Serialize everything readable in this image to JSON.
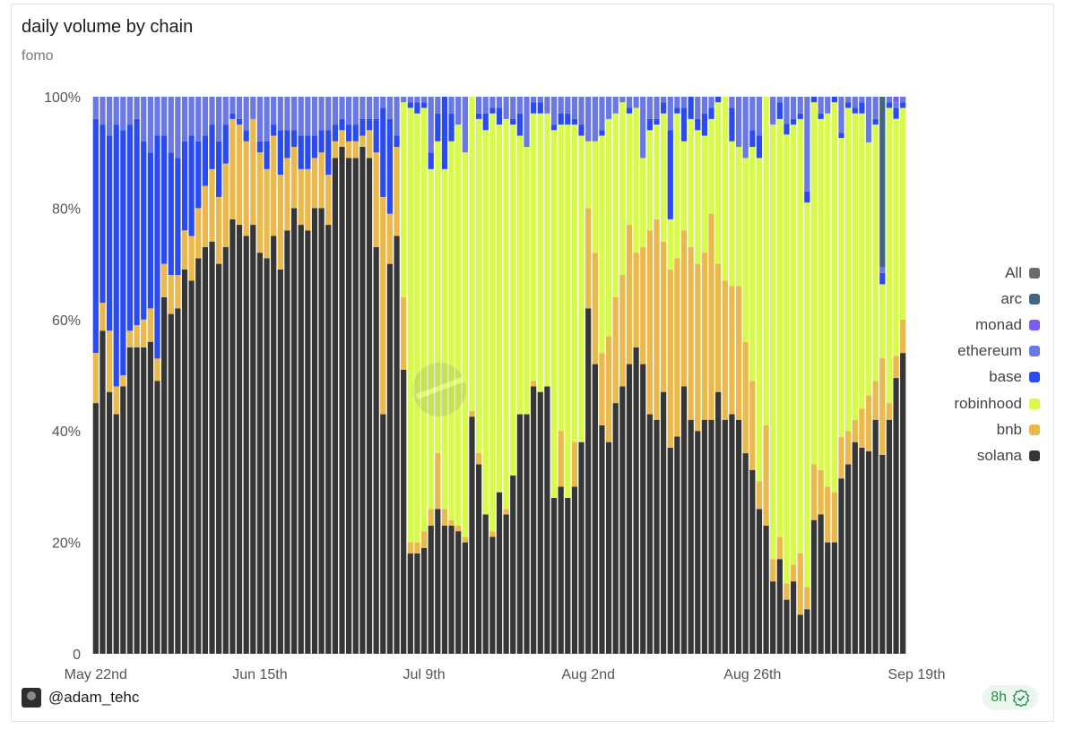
{
  "header": {
    "title": "daily volume by chain",
    "subtitle": "fomo"
  },
  "footer": {
    "user": "@adam_tehc",
    "age": "8h"
  },
  "legend": [
    {
      "label": "All",
      "color": "#6b6b6b"
    },
    {
      "label": "arc",
      "color": "#3f6685"
    },
    {
      "label": "monad",
      "color": "#7c5cf0"
    },
    {
      "label": "ethereum",
      "color": "#6a78e3"
    },
    {
      "label": "base",
      "color": "#2a4bf2"
    },
    {
      "label": "robinhood",
      "color": "#d8fb4a"
    },
    {
      "label": "bnb",
      "color": "#ebb84c"
    },
    {
      "label": "solana",
      "color": "#363636"
    }
  ],
  "chart_data": {
    "type": "bar",
    "stacked": true,
    "ylim": [
      0,
      100
    ],
    "y_ticks": [
      "0",
      "20%",
      "40%",
      "60%",
      "80%",
      "100%"
    ],
    "x_ticks": [
      {
        "label": "May 22nd",
        "index": 0
      },
      {
        "label": "Jun 15th",
        "index": 24
      },
      {
        "label": "Jul 9th",
        "index": 48
      },
      {
        "label": "Aug 2nd",
        "index": 72
      },
      {
        "label": "Aug 26th",
        "index": 96
      },
      {
        "label": "Sep 19th",
        "index": 120
      }
    ],
    "series_order": [
      "solana",
      "bnb",
      "robinhood",
      "base",
      "ethereum",
      "monad",
      "arc"
    ],
    "colors": {
      "solana": "#363636",
      "bnb": "#ebb84c",
      "robinhood": "#d8fb4a",
      "base": "#2a4bf2",
      "ethereum": "#6a78e3",
      "monad": "#7c5cf0",
      "arc": "#3f6685"
    },
    "series": [
      {
        "name": "solana",
        "values": [
          45,
          58,
          47,
          43,
          48,
          55,
          55,
          55,
          56,
          49,
          64,
          61,
          62,
          69,
          67,
          71,
          73,
          74,
          70,
          73,
          78,
          77,
          75,
          77,
          72,
          71,
          75,
          69,
          76,
          80,
          77,
          76,
          80,
          80,
          77,
          89,
          91,
          89,
          89,
          91,
          89,
          73,
          43,
          70,
          75,
          51,
          18,
          18,
          19,
          23,
          26,
          23,
          23,
          22,
          20,
          43,
          34,
          25,
          21,
          29,
          25,
          32,
          43,
          43,
          48,
          47,
          48,
          28,
          30,
          28,
          30,
          38,
          62,
          52,
          41,
          38,
          45,
          48,
          52,
          55,
          52,
          43,
          42,
          47,
          37,
          39,
          48,
          42,
          40,
          42,
          42,
          47,
          42,
          43,
          42,
          36,
          33,
          26,
          23,
          13,
          17,
          10,
          13,
          7,
          8,
          24,
          25,
          20,
          20,
          34,
          34,
          38,
          37,
          40,
          42,
          35,
          42,
          50,
          54
        ]
      },
      {
        "name": "bnb",
        "values": [
          9,
          5,
          11,
          5,
          2,
          3,
          4,
          5,
          6,
          4,
          6,
          7,
          6,
          7,
          8,
          9,
          11,
          13,
          12,
          15,
          18,
          18,
          17,
          19,
          18,
          16,
          18,
          17,
          13,
          11,
          10,
          11,
          9,
          10,
          9,
          3,
          3,
          3,
          3,
          2,
          5,
          17,
          39,
          9,
          16,
          13,
          2,
          2,
          3,
          3,
          10,
          3,
          1,
          1,
          1,
          1,
          2,
          0,
          1,
          0,
          1,
          0,
          0,
          0,
          1,
          0,
          0,
          0,
          10,
          0,
          8,
          0,
          18,
          20,
          13,
          19,
          19,
          20,
          25,
          17,
          21,
          33,
          36,
          27,
          32,
          32,
          28,
          31,
          30,
          30,
          37,
          23,
          25,
          23,
          24,
          20,
          16,
          5,
          18,
          4,
          4,
          3,
          3,
          11,
          4,
          10,
          8,
          10,
          9,
          8,
          6,
          4,
          7,
          11,
          7,
          17,
          3,
          4,
          6
        ]
      },
      {
        "name": "robinhood",
        "values": [
          0,
          0,
          0,
          0,
          0,
          0,
          0,
          0,
          0,
          0,
          0,
          0,
          0,
          0,
          0,
          0,
          0,
          0,
          0,
          0,
          0,
          0,
          0,
          0,
          0,
          0,
          0,
          0,
          0,
          0,
          0,
          0,
          0,
          0,
          0,
          0,
          0,
          0,
          0,
          0,
          0,
          0,
          0,
          0,
          0,
          35,
          78,
          77,
          76,
          61,
          56,
          61,
          68,
          72,
          69,
          57,
          60,
          69,
          75,
          66,
          70,
          63,
          50,
          48,
          48,
          50,
          49,
          66,
          55,
          67,
          57,
          55,
          12,
          20,
          39,
          39,
          33,
          31,
          20,
          26,
          16,
          18,
          17,
          23,
          9,
          26,
          16,
          23,
          24,
          21,
          17,
          29,
          33,
          26,
          25,
          33,
          42,
          58,
          59,
          78,
          75,
          83,
          79,
          78,
          69,
          65,
          63,
          67,
          70,
          58,
          58,
          55,
          53,
          50,
          46,
          13,
          53,
          43,
          38
        ]
      },
      {
        "name": "base",
        "values": [
          42,
          32,
          35,
          47,
          44,
          37,
          37,
          32,
          28,
          40,
          23,
          22,
          21,
          16,
          18,
          12,
          9,
          8,
          10,
          7,
          1,
          1,
          2,
          0,
          2,
          5,
          2,
          8,
          5,
          3,
          6,
          6,
          4,
          4,
          8,
          3,
          2,
          3,
          3,
          3,
          2,
          6,
          16,
          17,
          2,
          0,
          1,
          2,
          1,
          3,
          5,
          13,
          5,
          0,
          0,
          0,
          1,
          3,
          1,
          3,
          0,
          1,
          4,
          0,
          2,
          2,
          0,
          1,
          2,
          2,
          1,
          2,
          0,
          0,
          1,
          0,
          0,
          0,
          1,
          0,
          0,
          2,
          1,
          2,
          16,
          1,
          6,
          4,
          2,
          4,
          2,
          1,
          0,
          6,
          0,
          0,
          3,
          4,
          0,
          0,
          3,
          2,
          1,
          1,
          2,
          1,
          1,
          0,
          1,
          1,
          1,
          1,
          2,
          0,
          1,
          2,
          1,
          2,
          1
        ]
      },
      {
        "name": "ethereum",
        "values": [
          4,
          5,
          7,
          5,
          6,
          5,
          4,
          8,
          10,
          7,
          7,
          10,
          11,
          8,
          7,
          8,
          7,
          5,
          8,
          5,
          3,
          4,
          6,
          4,
          8,
          8,
          5,
          6,
          6,
          6,
          7,
          7,
          7,
          6,
          6,
          5,
          4,
          5,
          5,
          4,
          4,
          4,
          2,
          4,
          7,
          1,
          1,
          1,
          1,
          10,
          3,
          0,
          3,
          5,
          10,
          0,
          3,
          3,
          2,
          2,
          4,
          4,
          3,
          9,
          1,
          1,
          3,
          5,
          3,
          3,
          4,
          5,
          8,
          8,
          6,
          4,
          3,
          1,
          2,
          2,
          11,
          4,
          4,
          1,
          6,
          2,
          2,
          0,
          4,
          3,
          2,
          0,
          0,
          2,
          9,
          11,
          6,
          7,
          0,
          5,
          1,
          5,
          4,
          3,
          17,
          0,
          3,
          3,
          0,
          7,
          1,
          2,
          1,
          9,
          4,
          1,
          1,
          1,
          1
        ]
      },
      {
        "name": "monad",
        "values": [
          0,
          0,
          0,
          0,
          0,
          0,
          0,
          0,
          0,
          0,
          0,
          0,
          0,
          0,
          0,
          0,
          0,
          0,
          0,
          0,
          0,
          0,
          0,
          0,
          0,
          0,
          0,
          0,
          0,
          0,
          0,
          0,
          0,
          0,
          0,
          0,
          0,
          0,
          0,
          0,
          0,
          0,
          0,
          0,
          0,
          0,
          0,
          0,
          0,
          0,
          0,
          0,
          0,
          0,
          0,
          0,
          0,
          0,
          0,
          0,
          0,
          0,
          0,
          0,
          0,
          0,
          0,
          0,
          0,
          0,
          0,
          0,
          0,
          0,
          0,
          0,
          0,
          0,
          0,
          0,
          0,
          0,
          0,
          0,
          0,
          0,
          0,
          0,
          0,
          0,
          0,
          0,
          0,
          0,
          0,
          0,
          0,
          0,
          0,
          0,
          0,
          0,
          0,
          0,
          0,
          0,
          0,
          0,
          0,
          0,
          0,
          0,
          0,
          0,
          0,
          0,
          0,
          1,
          0
        ]
      },
      {
        "name": "arc",
        "values": [
          0,
          0,
          0,
          0,
          0,
          0,
          0,
          0,
          0,
          0,
          0,
          0,
          0,
          0,
          0,
          0,
          0,
          0,
          0,
          0,
          0,
          0,
          0,
          0,
          0,
          0,
          0,
          0,
          0,
          0,
          0,
          0,
          0,
          0,
          0,
          0,
          0,
          0,
          0,
          0,
          0,
          0,
          0,
          0,
          0,
          0,
          0,
          0,
          0,
          0,
          0,
          0,
          0,
          0,
          0,
          0,
          0,
          0,
          0,
          0,
          0,
          0,
          0,
          0,
          0,
          0,
          0,
          0,
          0,
          0,
          0,
          0,
          0,
          0,
          0,
          0,
          0,
          0,
          0,
          0,
          0,
          0,
          0,
          0,
          0,
          0,
          0,
          0,
          0,
          0,
          0,
          0,
          0,
          0,
          0,
          0,
          0,
          0,
          0,
          0,
          0,
          0,
          0,
          0,
          0,
          0,
          0,
          0,
          0,
          0,
          0,
          0,
          0,
          0,
          0,
          30,
          0,
          0,
          0
        ]
      }
    ]
  }
}
